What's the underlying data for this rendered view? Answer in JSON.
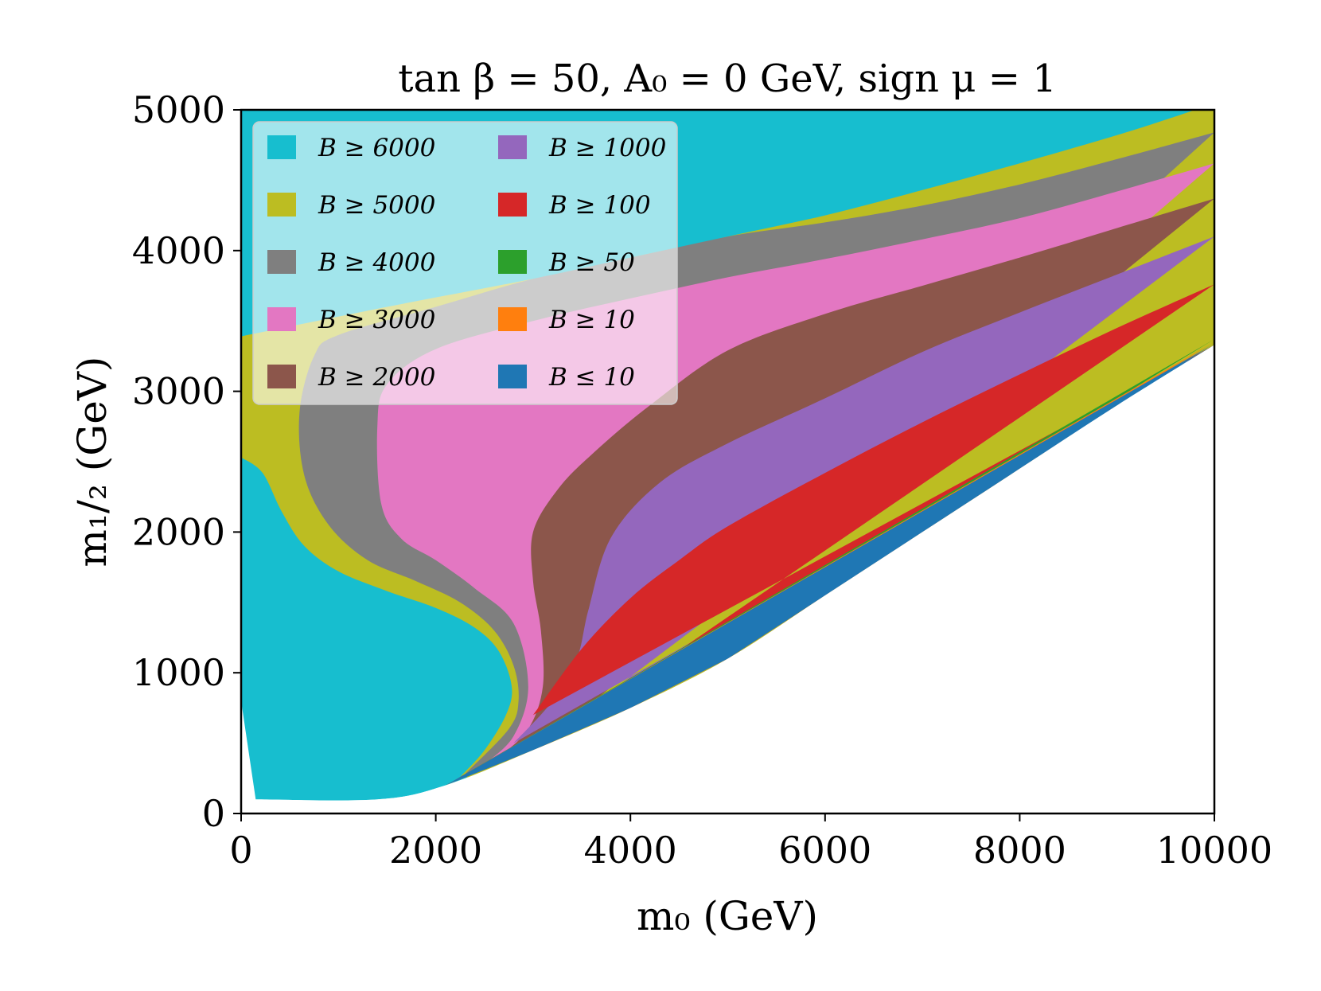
{
  "chart_data": {
    "type": "area",
    "title": "tan β = 50, A₀ = 0 GeV, sign μ = 1",
    "xlabel": "m₀ (GeV)",
    "ylabel": "m₁/₂ (GeV)",
    "xlim": [
      0,
      10000
    ],
    "ylim": [
      0,
      5000
    ],
    "xticks": [
      0,
      2000,
      4000,
      6000,
      8000,
      10000
    ],
    "yticks": [
      0,
      1000,
      2000,
      3000,
      4000,
      5000
    ],
    "xtick_labels": [
      "0",
      "2000",
      "4000",
      "6000",
      "8000",
      "10000"
    ],
    "ytick_labels": [
      "0",
      "1000",
      "2000",
      "3000",
      "4000",
      "5000"
    ],
    "grid": false,
    "legend_position": "upper-left",
    "legend_columns": 2,
    "lower_boundary": [
      [
        150,
        100
      ],
      [
        1400,
        100
      ],
      [
        2100,
        200
      ],
      [
        3000,
        450
      ],
      [
        4000,
        750
      ],
      [
        5000,
        1100
      ],
      [
        6000,
        1550
      ],
      [
        7000,
        2000
      ],
      [
        8000,
        2450
      ],
      [
        9000,
        2900
      ],
      [
        10000,
        3330
      ]
    ],
    "series": [
      {
        "name": "B ≥ 6000",
        "color": "#17becf",
        "boundary": [
          [
            0,
            3390
          ],
          [
            1500,
            3600
          ],
          [
            3000,
            3800
          ],
          [
            4000,
            3950
          ],
          [
            5000,
            4100
          ],
          [
            6000,
            4250
          ],
          [
            7000,
            4430
          ],
          [
            8000,
            4620
          ],
          [
            9000,
            4820
          ],
          [
            9500,
            4930
          ],
          [
            9800,
            5000
          ]
        ]
      },
      {
        "name": "B ≥ 5000",
        "color": "#bcbd22",
        "boundary": [
          [
            0,
            2530
          ],
          [
            220,
            2420
          ],
          [
            420,
            2140
          ],
          [
            650,
            1900
          ],
          [
            1000,
            1720
          ],
          [
            1500,
            1580
          ],
          [
            2000,
            1460
          ],
          [
            2400,
            1320
          ],
          [
            2650,
            1150
          ],
          [
            2780,
            900
          ],
          [
            2720,
            700
          ],
          [
            2500,
            450
          ],
          [
            2250,
            260
          ]
        ]
      },
      {
        "name": "B ≥ 4000",
        "color": "#7f7f7f",
        "boundary": [
          [
            10000,
            4840
          ],
          [
            9000,
            4650
          ],
          [
            8000,
            4470
          ],
          [
            7000,
            4320
          ],
          [
            6000,
            4200
          ],
          [
            5000,
            4100
          ],
          [
            4000,
            3950
          ],
          [
            3000,
            3800
          ],
          [
            2000,
            3600
          ],
          [
            1000,
            3400
          ],
          [
            750,
            3250
          ],
          [
            600,
            2850
          ],
          [
            650,
            2400
          ],
          [
            900,
            2050
          ],
          [
            1300,
            1800
          ],
          [
            1800,
            1650
          ],
          [
            2250,
            1500
          ],
          [
            2600,
            1300
          ],
          [
            2800,
            1050
          ],
          [
            2850,
            800
          ],
          [
            2750,
            600
          ],
          [
            2300,
            280
          ]
        ]
      },
      {
        "name": "B ≥ 3000",
        "color": "#e377c2",
        "boundary": [
          [
            10000,
            4620
          ],
          [
            9000,
            4420
          ],
          [
            8000,
            4230
          ],
          [
            7000,
            4080
          ],
          [
            6000,
            3940
          ],
          [
            5000,
            3810
          ],
          [
            4000,
            3660
          ],
          [
            3000,
            3500
          ],
          [
            2000,
            3300
          ],
          [
            1500,
            3050
          ],
          [
            1400,
            2750
          ],
          [
            1440,
            2200
          ],
          [
            1650,
            1950
          ],
          [
            2000,
            1800
          ],
          [
            2400,
            1600
          ],
          [
            2800,
            1350
          ],
          [
            2950,
            900
          ],
          [
            2800,
            550
          ],
          [
            2500,
            350
          ]
        ]
      },
      {
        "name": "B ≥ 2000",
        "color": "#8c564b",
        "boundary": [
          [
            10000,
            4370
          ],
          [
            9000,
            4160
          ],
          [
            8000,
            3950
          ],
          [
            7000,
            3750
          ],
          [
            6000,
            3550
          ],
          [
            5000,
            3290
          ],
          [
            4200,
            2900
          ],
          [
            3600,
            2550
          ],
          [
            3250,
            2300
          ],
          [
            3000,
            2000
          ],
          [
            3000,
            1650
          ],
          [
            3080,
            1300
          ],
          [
            3100,
            900
          ],
          [
            2950,
            600
          ],
          [
            2650,
            400
          ]
        ]
      },
      {
        "name": "B ≥ 1000",
        "color": "#9467bd",
        "boundary": [
          [
            10000,
            4100
          ],
          [
            9000,
            3830
          ],
          [
            8000,
            3560
          ],
          [
            7000,
            3280
          ],
          [
            6000,
            2950
          ],
          [
            5000,
            2630
          ],
          [
            4300,
            2350
          ],
          [
            3800,
            1960
          ],
          [
            3570,
            1450
          ],
          [
            3450,
            1100
          ],
          [
            3200,
            800
          ],
          [
            2800,
            500
          ]
        ]
      },
      {
        "name": "B ≥ 100",
        "color": "#d62728",
        "boundary": [
          [
            10000,
            3760
          ],
          [
            9000,
            3450
          ],
          [
            8000,
            3120
          ],
          [
            7000,
            2780
          ],
          [
            6000,
            2420
          ],
          [
            5000,
            2040
          ],
          [
            4500,
            1800
          ],
          [
            4000,
            1530
          ],
          [
            3500,
            1170
          ],
          [
            3000,
            700
          ]
        ]
      },
      {
        "name": "B ≥ 50",
        "color": "#2ca02c",
        "boundary": [
          [
            10000,
            3370
          ],
          [
            9000,
            2945
          ],
          [
            8000,
            2495
          ],
          [
            7000,
            2045
          ],
          [
            6000,
            1595
          ],
          [
            5000,
            1150
          ],
          [
            4000,
            800
          ],
          [
            3000,
            490
          ],
          [
            2100,
            200
          ]
        ]
      },
      {
        "name": "B ≥ 10",
        "color": "#ff7f0e",
        "boundary": [
          [
            10000,
            3350
          ],
          [
            9000,
            2925
          ],
          [
            8000,
            2475
          ],
          [
            7000,
            2025
          ],
          [
            6000,
            1575
          ],
          [
            5000,
            1130
          ],
          [
            4000,
            780
          ],
          [
            3000,
            475
          ],
          [
            2100,
            200
          ]
        ]
      },
      {
        "name": "B ≤ 10",
        "color": "#1f77b4",
        "boundary": [
          [
            10000,
            3340
          ],
          [
            9000,
            2912
          ],
          [
            8000,
            2462
          ],
          [
            7000,
            2012
          ],
          [
            6000,
            1562
          ],
          [
            5000,
            1115
          ],
          [
            4000,
            765
          ],
          [
            3000,
            460
          ],
          [
            2100,
            200
          ]
        ]
      }
    ]
  }
}
